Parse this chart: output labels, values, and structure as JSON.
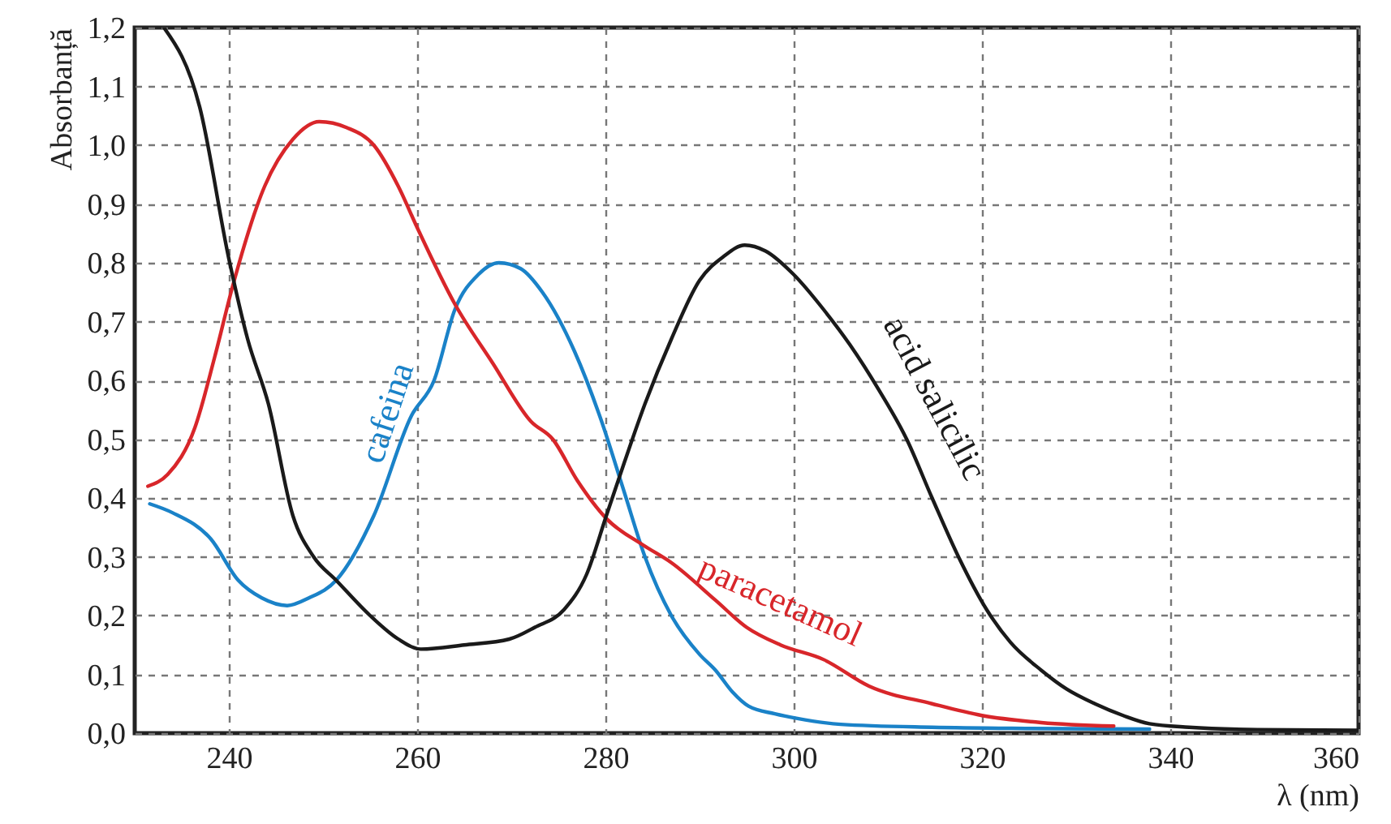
{
  "chart_data": {
    "type": "line",
    "xlabel": "λ (nm)",
    "ylabel": "Absorbanță",
    "xlim": [
      230,
      360
    ],
    "ylim": [
      0,
      1.2
    ],
    "xticks": [
      240,
      260,
      280,
      300,
      320,
      340,
      360
    ],
    "yticks": [
      {
        "value": 0,
        "label": "0,0"
      },
      {
        "value": 0.1,
        "label": "0,1"
      },
      {
        "value": 0.2,
        "label": "0,2"
      },
      {
        "value": 0.3,
        "label": "0,3"
      },
      {
        "value": 0.4,
        "label": "0,4"
      },
      {
        "value": 0.5,
        "label": "0,5"
      },
      {
        "value": 0.6,
        "label": "0,6"
      },
      {
        "value": 0.7,
        "label": "0,7"
      },
      {
        "value": 0.8,
        "label": "0,8"
      },
      {
        "value": 0.9,
        "label": "0,9"
      },
      {
        "value": 1.0,
        "label": "1,0"
      },
      {
        "value": 1.1,
        "label": "1,1"
      },
      {
        "value": 1.2,
        "label": "1,2"
      }
    ],
    "grid": true,
    "line_style": "solid",
    "series": [
      {
        "name": "cafeina",
        "color": "#1a82c8",
        "x": [
          231.6,
          234,
          238.1,
          241,
          243.5,
          246.2,
          248.5,
          251.4,
          255.4,
          259.4,
          261.8,
          264,
          266.5,
          268.7,
          271,
          273.3,
          276.7,
          279.6,
          282,
          284.2,
          287,
          290,
          291.7,
          293.5,
          295.2,
          298,
          300.4,
          305,
          314.7,
          325,
          337.8
        ],
        "values": [
          0.39,
          0.375,
          0.33,
          0.26,
          0.23,
          0.217,
          0.23,
          0.26,
          0.37,
          0.54,
          0.6,
          0.72,
          0.78,
          0.8,
          0.79,
          0.75,
          0.65,
          0.53,
          0.41,
          0.3,
          0.2,
          0.134,
          0.107,
          0.07,
          0.046,
          0.033,
          0.025,
          0.015,
          0.01,
          0.008,
          0.007
        ]
      },
      {
        "name": "paracetamol",
        "color": "#d8262a",
        "x": [
          231.4,
          233.5,
          236.4,
          238.5,
          240.4,
          243.8,
          246.8,
          249.6,
          252.5,
          255.4,
          258,
          260,
          264,
          268,
          272.1,
          274.4,
          277,
          280.1,
          284,
          287,
          291.7,
          295,
          298.6,
          303.2,
          308,
          314.7,
          320,
          326.3,
          334
        ],
        "values": [
          0.42,
          0.44,
          0.52,
          0.64,
          0.76,
          0.93,
          1.01,
          1.04,
          1.03,
          1.0,
          0.93,
          0.86,
          0.73,
          0.63,
          0.53,
          0.5,
          0.43,
          0.365,
          0.32,
          0.29,
          0.226,
          0.18,
          0.15,
          0.125,
          0.08,
          0.05,
          0.03,
          0.018,
          0.012
        ]
      },
      {
        "name": "acid salicilic",
        "color": "#1a1a1a",
        "x": [
          233.1,
          236.9,
          240,
          242,
          244.2,
          246.8,
          249,
          251.4,
          255,
          258,
          260.4,
          265,
          269.8,
          272.5,
          275.6,
          278,
          280.1,
          282,
          284.2,
          287,
          290,
          292.5,
          294.8,
          297,
          300,
          303.2,
          306,
          309,
          312,
          314.7,
          317.5,
          320.5,
          323,
          326.3,
          329,
          332,
          335,
          337.8,
          342,
          349.3,
          360
        ],
        "values": [
          1.2,
          1.065,
          0.807,
          0.67,
          0.56,
          0.37,
          0.3,
          0.26,
          0.2,
          0.16,
          0.143,
          0.15,
          0.16,
          0.18,
          0.21,
          0.27,
          0.37,
          0.46,
          0.56,
          0.67,
          0.77,
          0.81,
          0.83,
          0.82,
          0.78,
          0.72,
          0.66,
          0.585,
          0.5,
          0.4,
          0.3,
          0.21,
          0.155,
          0.107,
          0.075,
          0.05,
          0.03,
          0.016,
          0.01,
          0.006,
          0.005
        ]
      }
    ]
  }
}
